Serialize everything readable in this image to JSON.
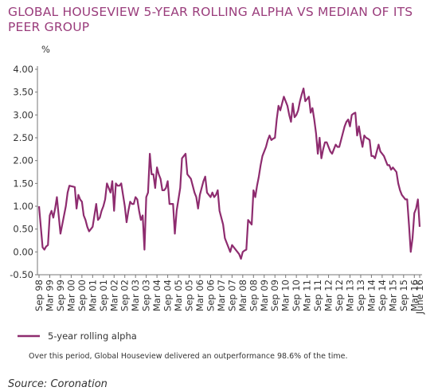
{
  "chart_data": {
    "type": "line",
    "title": "GLOBAL HOUSEVIEW 5-YEAR ROLLING ALPHA VS MEDIAN OF ITS PEER GROUP",
    "y_label": "%",
    "note": "Over this period, Global Houseview delivered an outperformance 98.6% of the time.",
    "source": "Source: Coronation",
    "categories": [
      "Sep 98",
      null,
      null,
      null,
      null,
      null,
      "Mar 99",
      null,
      null,
      null,
      null,
      null,
      "Sep 99",
      null,
      null,
      null,
      null,
      null,
      "Mar 00",
      null,
      null,
      null,
      null,
      null,
      "Sep 00",
      null,
      null,
      null,
      null,
      null,
      "Mar 01",
      null,
      null,
      null,
      null,
      null,
      "Sep 01",
      null,
      null,
      null,
      null,
      null,
      "Mar 02",
      null,
      null,
      null,
      null,
      null,
      "Sep 02",
      null,
      null,
      null,
      null,
      null,
      "Mar 03",
      null,
      null,
      null,
      null,
      null,
      "Sep 03",
      null,
      null,
      null,
      null,
      null,
      "Mar 04",
      null,
      null,
      null,
      null,
      null,
      "Sep 04",
      null,
      null,
      null,
      null,
      null,
      "Mar 05",
      null,
      null,
      null,
      null,
      null,
      "Sep 05",
      null,
      null,
      null,
      null,
      null,
      "Mar 06",
      null,
      null,
      null,
      null,
      null,
      "Sep 06",
      null,
      null,
      null,
      null,
      null,
      "Mar 07",
      null,
      null,
      null,
      null,
      null,
      "Sep 07",
      null,
      null,
      null,
      null,
      null,
      "Mar 08",
      null,
      null,
      null,
      null,
      null,
      "Sep 08",
      null,
      null,
      null,
      null,
      null,
      "Mar 09",
      null,
      null,
      null,
      null,
      null,
      "Sep 09",
      null,
      null,
      null,
      null,
      null,
      "Mar 10",
      null,
      null,
      null,
      null,
      null,
      "Sep 10",
      null,
      null,
      null,
      null,
      null,
      "Mar 11",
      null,
      null,
      null,
      null,
      null,
      "Sep 11",
      null,
      null,
      null,
      null,
      null,
      "Mar 12",
      null,
      null,
      null,
      null,
      null,
      "Sep 12",
      null,
      null,
      null,
      null,
      null,
      "Mar 13",
      null,
      null,
      null,
      null,
      null,
      "Sep 13",
      null,
      null,
      null,
      null,
      null,
      "Mar 14",
      null,
      null,
      null,
      null,
      null,
      "Sep 14",
      null,
      null,
      null,
      null,
      null,
      "Mar 15",
      null,
      null,
      null,
      null,
      null,
      "Sep 15",
      null,
      null,
      null,
      null,
      null,
      "Mar 16",
      null,
      null,
      "June 16"
    ],
    "series": [
      {
        "name": "5-year rolling alpha",
        "color": "#8e2c6f",
        "values": [
          1.0,
          0.55,
          0.1,
          0.05,
          0.12,
          0.15,
          0.8,
          0.9,
          0.75,
          0.95,
          1.2,
          0.8,
          0.4,
          0.6,
          0.8,
          1.0,
          1.3,
          1.45,
          1.44,
          1.43,
          1.42,
          0.95,
          1.25,
          1.15,
          1.1,
          0.8,
          0.7,
          0.55,
          0.45,
          0.5,
          0.55,
          0.8,
          1.05,
          0.7,
          0.75,
          0.9,
          1.0,
          1.15,
          1.5,
          1.4,
          1.3,
          1.55,
          0.9,
          1.5,
          1.45,
          1.45,
          1.5,
          1.25,
          1.0,
          0.65,
          0.9,
          1.1,
          1.05,
          1.05,
          1.2,
          1.15,
          0.9,
          0.7,
          0.8,
          0.05,
          1.2,
          1.3,
          2.15,
          1.7,
          1.7,
          1.4,
          1.85,
          1.7,
          1.6,
          1.35,
          1.35,
          1.4,
          1.55,
          1.05,
          1.05,
          1.05,
          0.4,
          0.9,
          1.15,
          1.4,
          2.05,
          2.1,
          2.15,
          1.7,
          1.65,
          1.6,
          1.45,
          1.3,
          1.2,
          0.95,
          1.25,
          1.4,
          1.55,
          1.65,
          1.3,
          1.25,
          1.2,
          1.3,
          1.2,
          1.25,
          1.35,
          0.9,
          0.75,
          0.6,
          0.3,
          0.2,
          0.1,
          0.0,
          0.15,
          0.1,
          0.05,
          0.0,
          -0.05,
          -0.15,
          0.0,
          0.03,
          0.05,
          0.7,
          0.65,
          0.6,
          1.35,
          1.2,
          1.45,
          1.65,
          1.9,
          2.1,
          2.2,
          2.3,
          2.45,
          2.55,
          2.45,
          2.48,
          2.5,
          2.9,
          3.2,
          3.1,
          3.25,
          3.4,
          3.3,
          3.2,
          3.0,
          2.85,
          3.25,
          2.95,
          3.0,
          3.1,
          3.3,
          3.45,
          3.58,
          3.3,
          3.35,
          3.4,
          3.05,
          3.15,
          2.9,
          2.6,
          2.15,
          2.5,
          2.05,
          2.25,
          2.4,
          2.4,
          2.3,
          2.2,
          2.15,
          2.25,
          2.35,
          2.3,
          2.3,
          2.45,
          2.6,
          2.75,
          2.85,
          2.9,
          2.75,
          3.0,
          3.03,
          3.05,
          2.55,
          2.75,
          2.5,
          2.3,
          2.55,
          2.5,
          2.48,
          2.45,
          2.1,
          2.1,
          2.05,
          2.2,
          2.35,
          2.2,
          2.15,
          2.1,
          2.0,
          1.9,
          1.9,
          1.8,
          1.85,
          1.8,
          1.75,
          1.5,
          1.35,
          1.25,
          1.2,
          1.15,
          1.15,
          0.6,
          0.0,
          0.3,
          0.85,
          0.95,
          1.15,
          0.55
        ]
      }
    ],
    "ylim": [
      -0.5,
      4.0
    ],
    "yticks": [
      {
        "value": 4.0,
        "label": "4.00"
      },
      {
        "value": 3.5,
        "label": "3.50"
      },
      {
        "value": 3.0,
        "label": "3.00"
      },
      {
        "value": 2.5,
        "label": "2.50"
      },
      {
        "value": 2.0,
        "label": "2.00"
      },
      {
        "value": 1.5,
        "label": "1.50"
      },
      {
        "value": 1.0,
        "label": "1.00"
      },
      {
        "value": 0.5,
        "label": "0.50"
      },
      {
        "value": 0,
        "label": "0.00"
      },
      {
        "value": -0.5,
        "label": "-0.50"
      }
    ],
    "grid": false
  }
}
